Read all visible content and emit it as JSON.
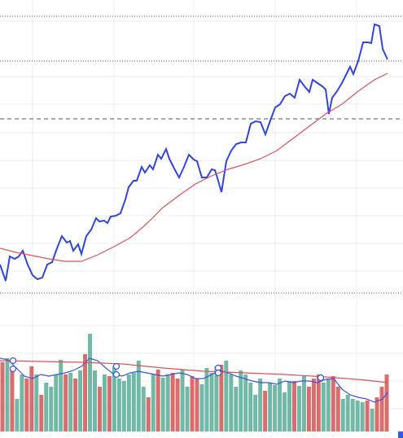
{
  "chart_data": [
    {
      "type": "line",
      "xlim": [
        0,
        495
      ],
      "ylim": [
        0,
        360
      ],
      "reference_lines": [
        340,
        285,
        214
      ],
      "series": [
        {
          "color": "#2f45e0",
          "x": [
            0,
            7,
            12,
            18,
            23,
            28,
            34,
            40,
            46,
            52,
            58,
            64,
            70,
            76,
            82,
            86,
            90,
            96,
            100,
            106,
            112,
            118,
            122,
            128,
            132,
            136,
            142,
            148,
            154,
            158,
            164,
            168,
            174,
            178,
            184,
            188,
            194,
            198,
            204,
            208,
            214,
            220,
            226,
            232,
            238,
            242,
            248,
            254,
            260,
            264,
            268,
            272,
            278,
            284,
            290,
            296,
            302,
            308,
            314,
            320,
            326,
            332,
            338,
            344,
            350,
            356,
            362,
            368,
            374,
            380,
            384,
            390,
            396,
            400,
            404,
            408,
            414,
            420,
            426,
            430,
            434,
            440,
            446,
            452,
            456,
            460,
            466,
            470,
            476
          ],
          "values": [
            35,
            15,
            45,
            42,
            45,
            52,
            35,
            22,
            17,
            19,
            35,
            38,
            55,
            70,
            62,
            64,
            52,
            60,
            48,
            70,
            78,
            92,
            88,
            89,
            86,
            94,
            95,
            98,
            115,
            130,
            138,
            138,
            155,
            148,
            157,
            152,
            170,
            165,
            177,
            165,
            153,
            142,
            155,
            170,
            164,
            162,
            142,
            142,
            152,
            151,
            138,
            124,
            162,
            175,
            183,
            185,
            185,
            208,
            211,
            210,
            195,
            212,
            228,
            232,
            242,
            245,
            240,
            262,
            254,
            247,
            262,
            258,
            254,
            250,
            220,
            240,
            248,
            258,
            270,
            278,
            269,
            285,
            308,
            308,
            307,
            330,
            328,
            300,
            287
          ]
        },
        {
          "color": "#d9535a",
          "x": [
            0,
            20,
            40,
            60,
            80,
            100,
            120,
            140,
            160,
            180,
            200,
            220,
            240,
            260,
            280,
            300,
            320,
            340,
            360,
            380,
            400,
            420,
            440,
            460,
            476
          ],
          "values": [
            55,
            50,
            46,
            42,
            39,
            39,
            47,
            57,
            68,
            85,
            105,
            120,
            134,
            144,
            152,
            158,
            165,
            175,
            190,
            205,
            220,
            232,
            248,
            262,
            270
          ]
        }
      ]
    },
    {
      "type": "bar",
      "xlim": [
        0,
        495
      ],
      "ylim": [
        0,
        170
      ],
      "values": [
        85,
        90,
        75,
        40,
        70,
        65,
        80,
        70,
        45,
        60,
        55,
        70,
        88,
        70,
        72,
        65,
        75,
        95,
        120,
        75,
        55,
        70,
        68,
        80,
        65,
        62,
        70,
        72,
        87,
        55,
        42,
        70,
        76,
        66,
        70,
        72,
        65,
        76,
        55,
        68,
        65,
        58,
        78,
        72,
        80,
        82,
        87,
        70,
        55,
        75,
        70,
        60,
        45,
        65,
        50,
        60,
        57,
        65,
        48,
        62,
        62,
        56,
        68,
        55,
        65,
        70,
        60,
        65,
        68,
        55,
        40,
        45,
        40,
        38,
        36,
        38,
        28,
        42,
        55,
        70
      ],
      "colors": [
        "#d96c6c",
        "#72b8a6",
        "#d96c6c",
        "#72b8a6",
        "#72b8a6",
        "#d96c6c",
        "#d96c6c",
        "#72b8a6",
        "#d96c6c",
        "#72b8a6",
        "#72b8a6",
        "#72b8a6",
        "#72b8a6",
        "#d96c6c",
        "#72b8a6",
        "#d96c6c",
        "#72b8a6",
        "#d96c6c",
        "#72b8a6",
        "#72b8a6",
        "#d96c6c",
        "#72b8a6",
        "#d96c6c",
        "#72b8a6",
        "#72b8a6",
        "#72b8a6",
        "#72b8a6",
        "#72b8a6",
        "#72b8a6",
        "#72b8a6",
        "#d96c6c",
        "#72b8a6",
        "#d96c6c",
        "#72b8a6",
        "#72b8a6",
        "#d96c6c",
        "#d96c6c",
        "#72b8a6",
        "#72b8a6",
        "#d96c6c",
        "#d96c6c",
        "#72b8a6",
        "#72b8a6",
        "#72b8a6",
        "#72b8a6",
        "#d96c6c",
        "#72b8a6",
        "#72b8a6",
        "#72b8a6",
        "#72b8a6",
        "#72b8a6",
        "#72b8a6",
        "#72b8a6",
        "#72b8a6",
        "#d96c6c",
        "#72b8a6",
        "#72b8a6",
        "#72b8a6",
        "#72b8a6",
        "#72b8a6",
        "#d96c6c",
        "#72b8a6",
        "#72b8a6",
        "#d96c6c",
        "#d96c6c",
        "#d96c6c",
        "#72b8a6",
        "#72b8a6",
        "#d96c6c",
        "#d96c6c",
        "#72b8a6",
        "#72b8a6",
        "#72b8a6",
        "#72b8a6",
        "#72b8a6",
        "#d96c6c",
        "#72b8a6",
        "#d96c6c",
        "#d96c6c",
        "#d96c6c"
      ],
      "series": [
        {
          "color": "#3a55d8",
          "x": [
            0,
            10,
            20,
            30,
            40,
            50,
            60,
            70,
            80,
            90,
            100,
            110,
            120,
            130,
            140,
            150,
            160,
            170,
            180,
            190,
            200,
            210,
            220,
            230,
            240,
            250,
            260,
            270,
            280,
            290,
            300,
            310,
            320,
            330,
            340,
            350,
            360,
            370,
            380,
            390,
            400,
            410,
            420,
            430,
            440,
            450,
            460,
            470,
            476
          ],
          "values": [
            90,
            88,
            78,
            68,
            65,
            70,
            68,
            70,
            72,
            75,
            80,
            90,
            87,
            78,
            70,
            68,
            72,
            74,
            72,
            70,
            68,
            70,
            72,
            70,
            65,
            65,
            70,
            75,
            72,
            68,
            65,
            62,
            60,
            60,
            58,
            62,
            60,
            62,
            62,
            60,
            64,
            65,
            52,
            45,
            42,
            40,
            36,
            40,
            48
          ]
        },
        {
          "color": "#d9535a",
          "x": [
            0,
            50,
            100,
            150,
            200,
            250,
            300,
            350,
            400,
            450,
            476
          ],
          "values": [
            87,
            86,
            85,
            83,
            78,
            74,
            72,
            70,
            67,
            63,
            60
          ]
        }
      ],
      "markers": {
        "color": "#3a55d8",
        "x": [
          16,
          16,
          143,
          143,
          268,
          268,
          394
        ],
        "values": [
          87,
          77,
          80,
          70,
          78,
          72,
          66
        ]
      }
    }
  ]
}
